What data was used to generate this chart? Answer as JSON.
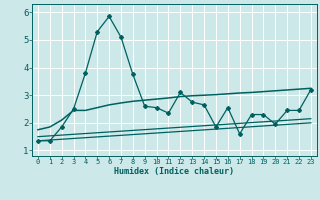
{
  "xlabel": "Humidex (Indice chaleur)",
  "ylabel": "",
  "bg_color": "#cce8e8",
  "grid_color": "#ffffff",
  "line_color": "#006060",
  "xlim": [
    -0.5,
    23.5
  ],
  "ylim": [
    0.8,
    6.3
  ],
  "xticks": [
    0,
    1,
    2,
    3,
    4,
    5,
    6,
    7,
    8,
    9,
    10,
    11,
    12,
    13,
    14,
    15,
    16,
    17,
    18,
    19,
    20,
    21,
    22,
    23
  ],
  "yticks": [
    1,
    2,
    3,
    4,
    5,
    6
  ],
  "series1_x": [
    0,
    1,
    2,
    3,
    4,
    5,
    6,
    7,
    8,
    9,
    10,
    11,
    12,
    13,
    14,
    15,
    16,
    17,
    18,
    19,
    20,
    21,
    22,
    23
  ],
  "series1_y": [
    1.35,
    1.35,
    1.85,
    2.5,
    3.8,
    5.3,
    5.85,
    5.1,
    3.75,
    2.6,
    2.55,
    2.35,
    3.1,
    2.75,
    2.65,
    1.85,
    2.55,
    1.6,
    2.3,
    2.3,
    1.95,
    2.45,
    2.45,
    3.2
  ],
  "series2_x": [
    0,
    1,
    2,
    3,
    4,
    5,
    6,
    7,
    8,
    9,
    10,
    11,
    12,
    13,
    14,
    15,
    16,
    17,
    18,
    19,
    20,
    21,
    22,
    23
  ],
  "series2_y": [
    1.75,
    1.85,
    2.1,
    2.45,
    2.45,
    2.55,
    2.65,
    2.72,
    2.78,
    2.82,
    2.86,
    2.9,
    2.95,
    2.98,
    3.0,
    3.02,
    3.05,
    3.08,
    3.1,
    3.13,
    3.16,
    3.19,
    3.22,
    3.25
  ],
  "series3_x": [
    0,
    23
  ],
  "series3_y": [
    1.5,
    2.15
  ],
  "series4_x": [
    0,
    23
  ],
  "series4_y": [
    1.35,
    2.0
  ]
}
